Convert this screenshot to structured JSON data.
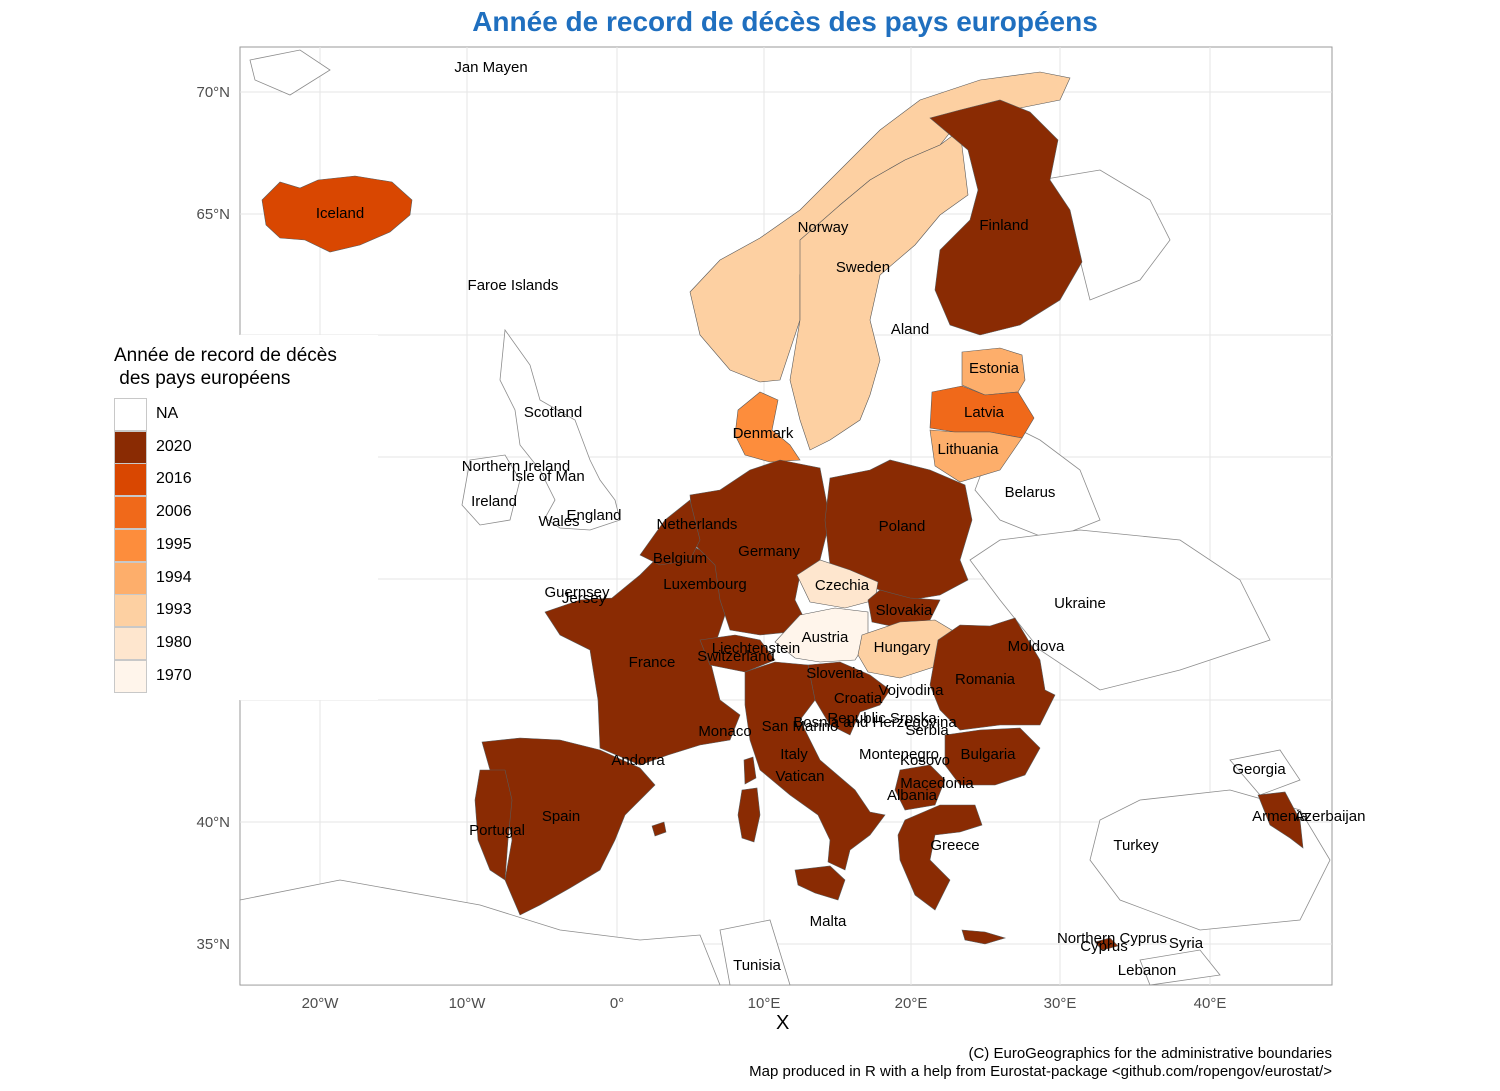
{
  "title": "Année de record de décès des pays européens",
  "x_axis_title": "X",
  "axis": {
    "lon_labels": [
      "20°W",
      "10°W",
      "0°",
      "10°E",
      "20°E",
      "30°E",
      "40°E"
    ],
    "lat_labels": [
      "70°N",
      "65°N",
      "40°N",
      "35°N"
    ]
  },
  "legend": {
    "title": "Année de record de décès\n des pays européens",
    "items": [
      {
        "label": "NA",
        "color": "#ffffff"
      },
      {
        "label": "2020",
        "color": "#8a2b03"
      },
      {
        "label": "2016",
        "color": "#d94701"
      },
      {
        "label": "2006",
        "color": "#f0691a"
      },
      {
        "label": "1995",
        "color": "#fd8d3c"
      },
      {
        "label": "1994",
        "color": "#fdae6b"
      },
      {
        "label": "1993",
        "color": "#fdd0a2"
      },
      {
        "label": "1980",
        "color": "#fee6ce"
      },
      {
        "label": "1970",
        "color": "#fff5eb"
      }
    ]
  },
  "country_labels": [
    "Jan Mayen",
    "Iceland",
    "Faroe Islands",
    "Norway",
    "Sweden",
    "Finland",
    "Aland",
    "Estonia",
    "Latvia",
    "Lithuania",
    "Denmark",
    "Scotland",
    "Northern Ireland",
    "Isle of Man",
    "Ireland",
    "Wales",
    "England",
    "Netherlands",
    "Belgium",
    "Germany",
    "Poland",
    "Belarus",
    "Luxembourg",
    "Guernsey",
    "Jersey",
    "Czechia",
    "Ukraine",
    "Slovakia",
    "Austria",
    "Liechtenstein",
    "Switzerland",
    "France",
    "Hungary",
    "Moldova",
    "Slovenia",
    "Romania",
    "Vojvodina",
    "Croatia",
    "Republic Srpska",
    "Bosnia and Herzegovina",
    "Serbia",
    "Monaco",
    "San Marino",
    "Italy",
    "Montenegro",
    "Kosovo",
    "Bulgaria",
    "Andorra",
    "Vatican",
    "Macedonia",
    "Albania",
    "Georgia",
    "Spain",
    "Armenia",
    "Azerbaijan",
    "Portugal",
    "Greece",
    "Turkey",
    "Malta",
    "Northern Cyprus",
    "Cyprus",
    "Syria",
    "Lebanon",
    "Tunisia"
  ],
  "country_record_year": {
    "Iceland": "2016",
    "Norway": "1993",
    "Sweden": "1993",
    "Finland": "2020",
    "Estonia": "1994",
    "Latvia": "2006",
    "Lithuania": "1994",
    "Denmark": "1995",
    "Netherlands": "2020",
    "Belgium": "2020",
    "Germany": "2020",
    "Poland": "2020",
    "Luxembourg": "2020",
    "Czechia": "1980",
    "Slovakia": "2020",
    "Austria": "1970",
    "Switzerland": "2020",
    "Liechtenstein": "2020",
    "France": "2020",
    "Hungary": "1993",
    "Slovenia": "2020",
    "Croatia": "2020",
    "Romania": "2020",
    "Bulgaria": "2020",
    "Italy": "2020",
    "Spain": "2020",
    "Portugal": "2020",
    "Greece": "2020",
    "Armenia": "2020",
    "Cyprus": "2020",
    "Macedonia": "2020",
    "Albania": "2020"
  },
  "credits": [
    "(C) EuroGeographics for the administrative boundaries",
    "Map produced in R with a help from Eurostat-package <github.com/ropengov/eurostat/>"
  ]
}
